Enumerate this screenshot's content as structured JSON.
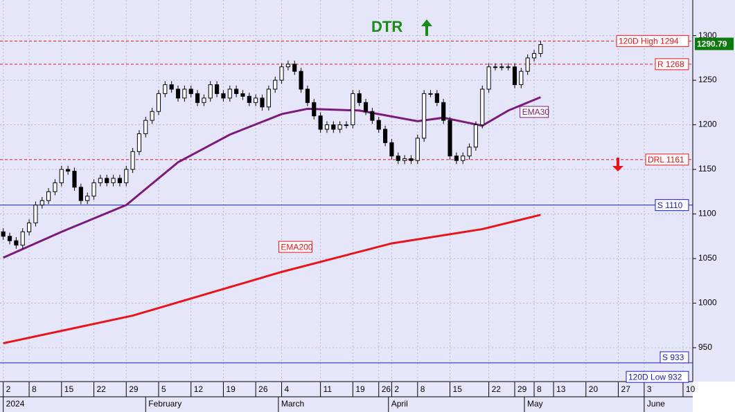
{
  "chart_data": {
    "type": "candlestick",
    "title": "DTR",
    "ylim": [
      912,
      1340
    ],
    "yticks": [
      950,
      1000,
      1050,
      1100,
      1150,
      1200,
      1250,
      1300
    ],
    "xlim": [
      -0.5,
      106.5
    ],
    "xticks": [
      {
        "value": 0,
        "label": "2"
      },
      {
        "value": 4,
        "label": "8"
      },
      {
        "value": 9,
        "label": "15"
      },
      {
        "value": 14,
        "label": "22"
      },
      {
        "value": 19,
        "label": "29"
      },
      {
        "value": 24,
        "label": "5"
      },
      {
        "value": 29,
        "label": "12"
      },
      {
        "value": 34,
        "label": "19"
      },
      {
        "value": 39,
        "label": "26"
      },
      {
        "value": 43,
        "label": "4"
      },
      {
        "value": 49,
        "label": "11"
      },
      {
        "value": 54,
        "label": "19"
      },
      {
        "value": 58,
        "label": "26"
      },
      {
        "value": 60,
        "label": "2"
      },
      {
        "value": 64,
        "label": "8"
      },
      {
        "value": 69,
        "label": "15"
      },
      {
        "value": 75,
        "label": "22"
      },
      {
        "value": 79,
        "label": "29"
      },
      {
        "value": 82,
        "label": "8"
      },
      {
        "value": 85,
        "label": "13"
      },
      {
        "value": 90,
        "label": "20"
      },
      {
        "value": 95,
        "label": "27"
      },
      {
        "value": 99,
        "label": "3"
      },
      {
        "value": 105,
        "label": "10"
      }
    ],
    "month_ticks": [
      {
        "value": 0,
        "label": "2024"
      },
      {
        "value": 22,
        "label": "February"
      },
      {
        "value": 42.5,
        "label": "March"
      },
      {
        "value": 59.5,
        "label": "April"
      },
      {
        "value": 80.5,
        "label": "May"
      },
      {
        "value": 99,
        "label": "June"
      }
    ],
    "grid": true,
    "open": [
      1080,
      1075,
      1070,
      1065,
      1080,
      1090,
      1110,
      1115,
      1125,
      1135,
      1150,
      1148,
      1130,
      1115,
      1120,
      1135,
      1140,
      1135,
      1140,
      1135,
      1150,
      1170,
      1190,
      1205,
      1215,
      1235,
      1245,
      1240,
      1230,
      1240,
      1235,
      1225,
      1230,
      1245,
      1235,
      1230,
      1240,
      1235,
      1232,
      1225,
      1230,
      1220,
      1240,
      1250,
      1265,
      1268,
      1260,
      1240,
      1225,
      1210,
      1195,
      1200,
      1195,
      1200,
      1200,
      1235,
      1225,
      1215,
      1205,
      1195,
      1180,
      1165,
      1160,
      1162,
      1160,
      1185,
      1235,
      1235,
      1225,
      1205,
      1165,
      1160,
      1165,
      1175,
      1200,
      1240,
      1265,
      1265,
      1265,
      1265,
      1245,
      1260,
      1275,
      1280
    ],
    "high": [
      1084,
      1079,
      1074,
      1084,
      1094,
      1114,
      1119,
      1129,
      1139,
      1154,
      1154,
      1152,
      1134,
      1124,
      1139,
      1144,
      1144,
      1144,
      1144,
      1154,
      1174,
      1194,
      1209,
      1219,
      1239,
      1249,
      1249,
      1244,
      1244,
      1244,
      1239,
      1234,
      1249,
      1249,
      1239,
      1244,
      1244,
      1239,
      1236,
      1234,
      1234,
      1244,
      1254,
      1269,
      1272,
      1272,
      1264,
      1244,
      1229,
      1214,
      1204,
      1204,
      1204,
      1204,
      1239,
      1239,
      1229,
      1219,
      1209,
      1199,
      1184,
      1169,
      1166,
      1166,
      1189,
      1239,
      1239,
      1239,
      1229,
      1209,
      1169,
      1169,
      1179,
      1204,
      1244,
      1269,
      1269,
      1269,
      1269,
      1269,
      1264,
      1279,
      1284,
      1294
    ],
    "low": [
      1071,
      1066,
      1061,
      1061,
      1076,
      1086,
      1106,
      1111,
      1121,
      1131,
      1144,
      1126,
      1111,
      1111,
      1116,
      1131,
      1131,
      1131,
      1131,
      1131,
      1146,
      1166,
      1186,
      1201,
      1211,
      1231,
      1236,
      1226,
      1226,
      1231,
      1221,
      1221,
      1226,
      1231,
      1226,
      1226,
      1231,
      1228,
      1221,
      1221,
      1216,
      1216,
      1236,
      1246,
      1261,
      1256,
      1236,
      1221,
      1206,
      1191,
      1191,
      1191,
      1191,
      1196,
      1196,
      1221,
      1211,
      1201,
      1191,
      1176,
      1161,
      1156,
      1156,
      1156,
      1156,
      1181,
      1231,
      1221,
      1201,
      1161,
      1156,
      1156,
      1161,
      1171,
      1196,
      1236,
      1261,
      1261,
      1261,
      1241,
      1241,
      1256,
      1271,
      1276
    ],
    "close": [
      1075,
      1070,
      1065,
      1080,
      1090,
      1110,
      1115,
      1125,
      1135,
      1150,
      1148,
      1130,
      1115,
      1120,
      1135,
      1140,
      1135,
      1140,
      1135,
      1150,
      1170,
      1190,
      1205,
      1215,
      1235,
      1245,
      1240,
      1230,
      1240,
      1235,
      1225,
      1230,
      1245,
      1235,
      1230,
      1240,
      1235,
      1232,
      1225,
      1230,
      1220,
      1240,
      1250,
      1265,
      1268,
      1260,
      1240,
      1225,
      1210,
      1195,
      1200,
      1195,
      1200,
      1200,
      1235,
      1225,
      1215,
      1205,
      1195,
      1180,
      1165,
      1160,
      1162,
      1160,
      1185,
      1235,
      1235,
      1225,
      1205,
      1165,
      1160,
      1165,
      1175,
      1200,
      1240,
      1265,
      1265,
      1265,
      1265,
      1245,
      1260,
      1275,
      1280,
      1290
    ],
    "series": [
      {
        "name": "EMA30",
        "color": "#7b1a7b",
        "x": [
          0,
          9,
          19,
          27,
          35,
          43,
          47,
          55,
          64,
          68,
          74,
          78,
          83
        ],
        "values": [
          1051,
          1080,
          1110,
          1158,
          1189,
          1212,
          1218,
          1216,
          1204,
          1208,
          1199,
          1216,
          1231
        ]
      },
      {
        "name": "EMA200",
        "color": "#e8141a",
        "x": [
          0,
          20,
          43,
          60,
          74,
          83
        ],
        "values": [
          955,
          986,
          1035,
          1067,
          1083,
          1099
        ]
      }
    ],
    "levels": [
      {
        "label": "120D High 1294",
        "value": 1294,
        "color": "#e8141a",
        "style": "dashed"
      },
      {
        "label": "R 1268",
        "value": 1268,
        "color": "#e8141a",
        "style": "dashed"
      },
      {
        "label": "DRL 1161",
        "value": 1161,
        "color": "#e8141a",
        "style": "dashed"
      },
      {
        "label": "S 1110",
        "value": 1110,
        "color": "#1a1ac8",
        "style": "solid"
      },
      {
        "label": "S 933",
        "value": 933,
        "color": "#1a1ac8",
        "style": "solid"
      },
      {
        "label": "120D Low 932",
        "value": 932,
        "color": "#1a1ac8",
        "style": "none"
      }
    ],
    "last_price": 1290.79
  }
}
